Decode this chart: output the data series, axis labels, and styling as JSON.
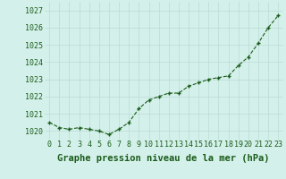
{
  "hours": [
    0,
    1,
    2,
    3,
    4,
    5,
    6,
    7,
    8,
    9,
    10,
    11,
    12,
    13,
    14,
    15,
    16,
    17,
    18,
    19,
    20,
    21,
    22,
    23
  ],
  "pressure": [
    1020.5,
    1020.2,
    1020.1,
    1020.2,
    1020.1,
    1020.0,
    1019.8,
    1020.1,
    1020.5,
    1021.3,
    1021.8,
    1022.0,
    1022.2,
    1022.2,
    1022.6,
    1022.8,
    1023.0,
    1023.1,
    1023.2,
    1023.8,
    1024.3,
    1025.1,
    1026.0,
    1026.7
  ],
  "ylim": [
    1019.5,
    1027.5
  ],
  "yticks": [
    1020,
    1021,
    1022,
    1023,
    1024,
    1025,
    1026,
    1027
  ],
  "line_color": "#1a5c1a",
  "marker": "+",
  "bg_color": "#d4f0ea",
  "grid_color": "#b8ddd5",
  "xlabel": "Graphe pression niveau de la mer (hPa)",
  "xlabel_color": "#1a5c1a",
  "xlabel_fontsize": 7.5,
  "tick_fontsize": 6.0,
  "tick_color": "#1a5c1a"
}
